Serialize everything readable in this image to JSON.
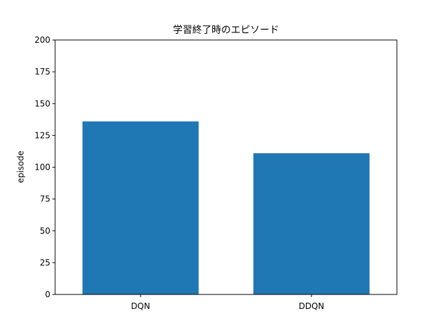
{
  "chart_data": {
    "type": "bar",
    "title": "学習終了時のエピソード",
    "xlabel": "",
    "ylabel": "episode",
    "categories": [
      "DQN",
      "DDQN"
    ],
    "values": [
      136,
      111
    ],
    "ylim": [
      0,
      200
    ],
    "yticks": [
      0,
      25,
      50,
      75,
      100,
      125,
      150,
      175,
      200
    ],
    "bar_color": "#1f77b4",
    "grid": false,
    "legend": "none"
  }
}
